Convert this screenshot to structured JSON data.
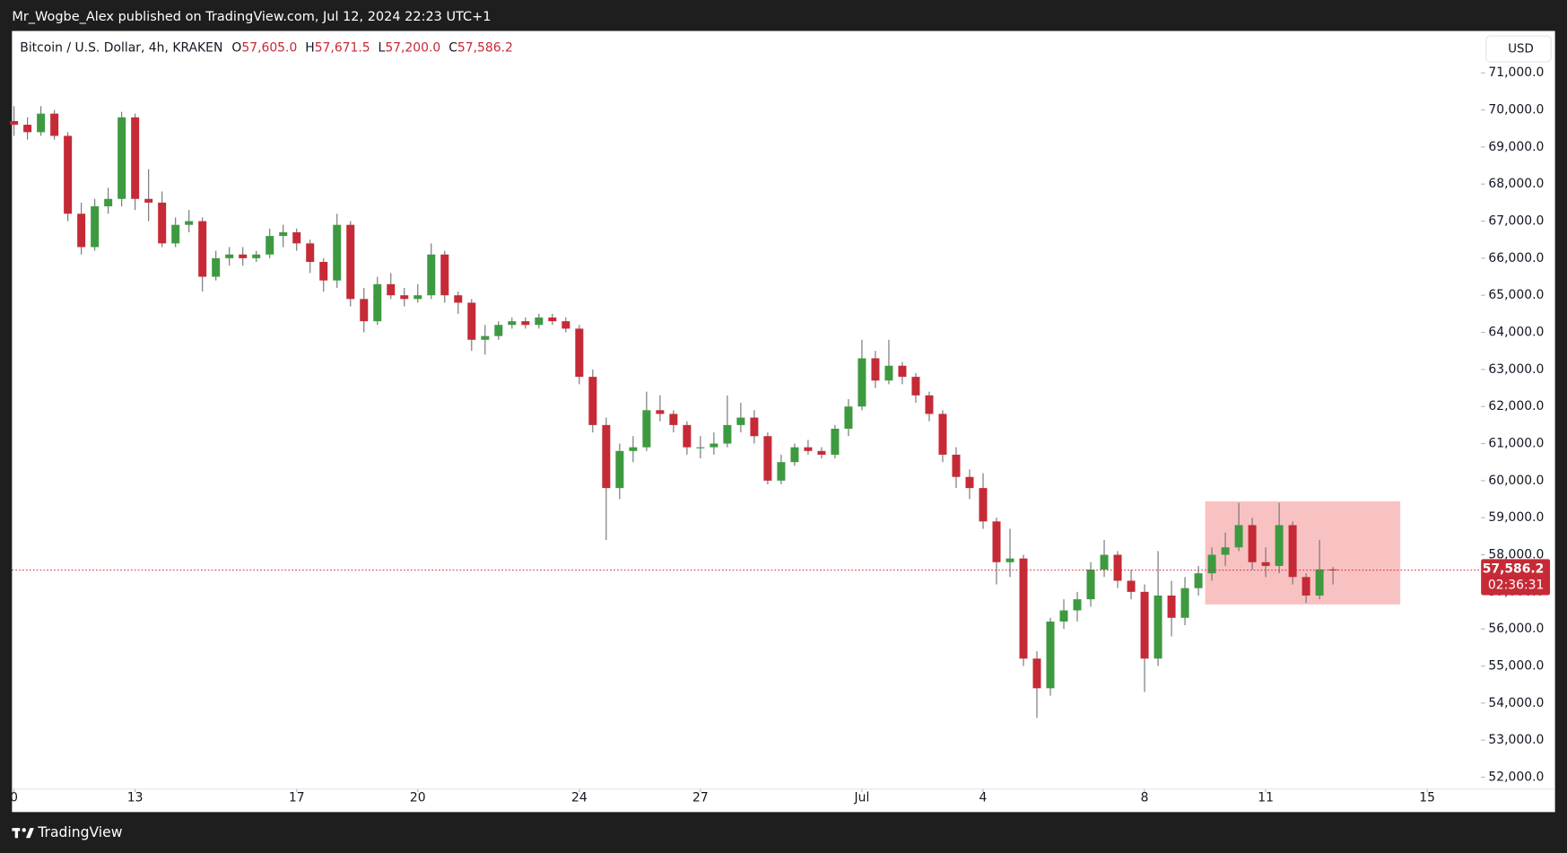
{
  "header": "Mr_Wogbe_Alex published on TradingView.com, Jul 12, 2024 22:23 UTC+1",
  "footer": "TradingView",
  "chart_data": {
    "type": "candlestick",
    "title": "Bitcoin / U.S. Dollar, 4h, KRAKEN",
    "ohlc": [
      {
        "key": "O",
        "value": 57605,
        "label": "57,605.0"
      },
      {
        "key": "H",
        "value": 57671.5,
        "label": "57,671.5"
      },
      {
        "key": "L",
        "value": 57200,
        "label": "57,200.0"
      },
      {
        "key": "C",
        "value": 57586.2,
        "label": "57,586.2"
      }
    ],
    "currency": "USD",
    "up_color": "#3d9a40",
    "down_color": "#c62a36",
    "wick_color": "#6f7074",
    "x": [
      0,
      1,
      2,
      3,
      4,
      5,
      6,
      7,
      8,
      9,
      10,
      11,
      12,
      13,
      14,
      15,
      16,
      17,
      18,
      19,
      20,
      21,
      22,
      23,
      24,
      25,
      26,
      27,
      28,
      29,
      30,
      31,
      32,
      33,
      34,
      35,
      36,
      37,
      38,
      39,
      40,
      41,
      42,
      43,
      44,
      45,
      46,
      47,
      48,
      49,
      50,
      51,
      52,
      53,
      54,
      55,
      56,
      57,
      58,
      59,
      60,
      61,
      62,
      63,
      64,
      65,
      66,
      67,
      68,
      69,
      70,
      71,
      72,
      73,
      74,
      75,
      76,
      77,
      78,
      79,
      80,
      81,
      82,
      83,
      84,
      85,
      86,
      87,
      88,
      89,
      90,
      91,
      92,
      93,
      94,
      95,
      96,
      97,
      98
    ],
    "candles": [
      [
        69700,
        70100,
        69300,
        69600
      ],
      [
        69600,
        69800,
        69200,
        69400
      ],
      [
        69400,
        70100,
        69300,
        69900
      ],
      [
        69900,
        70000,
        69200,
        69300
      ],
      [
        69300,
        69400,
        67000,
        67200
      ],
      [
        67200,
        67500,
        66100,
        66300
      ],
      [
        66300,
        67600,
        66200,
        67400
      ],
      [
        67400,
        67900,
        67200,
        67600
      ],
      [
        67600,
        69950,
        67400,
        69800
      ],
      [
        69800,
        69900,
        67300,
        67600
      ],
      [
        67600,
        68400,
        67000,
        67500
      ],
      [
        67500,
        67800,
        66300,
        66400
      ],
      [
        66400,
        67100,
        66300,
        66900
      ],
      [
        66900,
        67300,
        66700,
        67000
      ],
      [
        67000,
        67100,
        65100,
        65500
      ],
      [
        65500,
        66200,
        65400,
        66000
      ],
      [
        66000,
        66300,
        65800,
        66100
      ],
      [
        66100,
        66300,
        65800,
        66000
      ],
      [
        66000,
        66200,
        65900,
        66100
      ],
      [
        66100,
        66800,
        66000,
        66600
      ],
      [
        66600,
        66900,
        66300,
        66700
      ],
      [
        66700,
        66800,
        66200,
        66400
      ],
      [
        66400,
        66500,
        65600,
        65900
      ],
      [
        65900,
        66000,
        65100,
        65400
      ],
      [
        65400,
        67200,
        65200,
        66900
      ],
      [
        66900,
        67000,
        64700,
        64900
      ],
      [
        64900,
        65200,
        64000,
        64300
      ],
      [
        64300,
        65500,
        64200,
        65300
      ],
      [
        65300,
        65600,
        64900,
        65000
      ],
      [
        65000,
        65200,
        64700,
        64900
      ],
      [
        64900,
        65300,
        64800,
        65000
      ],
      [
        65000,
        66400,
        64900,
        66100
      ],
      [
        66100,
        66200,
        64800,
        65000
      ],
      [
        65000,
        65100,
        64500,
        64800
      ],
      [
        64800,
        64900,
        63500,
        63800
      ],
      [
        63800,
        64200,
        63400,
        63900
      ],
      [
        63900,
        64300,
        63800,
        64200
      ],
      [
        64200,
        64400,
        64100,
        64300
      ],
      [
        64300,
        64400,
        64100,
        64200
      ],
      [
        64200,
        64500,
        64100,
        64400
      ],
      [
        64400,
        64500,
        64200,
        64300
      ],
      [
        64300,
        64400,
        64000,
        64100
      ],
      [
        64100,
        64200,
        62600,
        62800
      ],
      [
        62800,
        63000,
        61300,
        61500
      ],
      [
        61500,
        61700,
        58400,
        59800
      ],
      [
        59800,
        61000,
        59500,
        60800
      ],
      [
        60800,
        61200,
        60500,
        60900
      ],
      [
        60900,
        62400,
        60800,
        61900
      ],
      [
        61900,
        62300,
        61600,
        61800
      ],
      [
        61800,
        61900,
        61300,
        61500
      ],
      [
        61500,
        61600,
        60700,
        60900
      ],
      [
        60900,
        61200,
        60600,
        60900
      ],
      [
        60900,
        61300,
        60700,
        61000
      ],
      [
        61000,
        62300,
        60900,
        61500
      ],
      [
        61500,
        62100,
        61300,
        61700
      ],
      [
        61700,
        61900,
        61000,
        61200
      ],
      [
        61200,
        61300,
        59900,
        60000
      ],
      [
        60000,
        60700,
        59900,
        60500
      ],
      [
        60500,
        61000,
        60400,
        60900
      ],
      [
        60900,
        61100,
        60700,
        60800
      ],
      [
        60800,
        60900,
        60600,
        60700
      ],
      [
        60700,
        61500,
        60600,
        61400
      ],
      [
        61400,
        62200,
        61200,
        62000
      ],
      [
        62000,
        63800,
        61900,
        63300
      ],
      [
        63300,
        63500,
        62500,
        62700
      ],
      [
        62700,
        63800,
        62600,
        63100
      ],
      [
        63100,
        63200,
        62600,
        62800
      ],
      [
        62800,
        62900,
        62100,
        62300
      ],
      [
        62300,
        62400,
        61600,
        61800
      ],
      [
        61800,
        61900,
        60500,
        60700
      ],
      [
        60700,
        60900,
        59800,
        60100
      ],
      [
        60100,
        60300,
        59500,
        59800
      ],
      [
        59800,
        60200,
        58700,
        58900
      ],
      [
        58900,
        59000,
        57200,
        57800
      ],
      [
        57800,
        58700,
        57400,
        57900
      ],
      [
        57900,
        58000,
        55000,
        55200
      ],
      [
        55200,
        55400,
        53600,
        54400
      ],
      [
        54400,
        56300,
        54200,
        56200
      ],
      [
        56200,
        56800,
        56000,
        56500
      ],
      [
        56500,
        57000,
        56200,
        56800
      ],
      [
        56800,
        57800,
        56600,
        57600
      ],
      [
        57600,
        58400,
        57400,
        58000
      ],
      [
        58000,
        58100,
        57100,
        57300
      ],
      [
        57300,
        57600,
        56800,
        57000
      ],
      [
        57000,
        57200,
        54300,
        55200
      ],
      [
        55200,
        58100,
        55000,
        56900
      ],
      [
        56900,
        57300,
        55800,
        56300
      ],
      [
        56300,
        57400,
        56100,
        57100
      ],
      [
        57100,
        57700,
        56900,
        57500
      ],
      [
        57500,
        58200,
        57300,
        58000
      ],
      [
        58000,
        58600,
        57700,
        58200
      ],
      [
        58200,
        59400,
        58100,
        58800
      ],
      [
        58800,
        59000,
        57600,
        57800
      ],
      [
        57800,
        58200,
        57400,
        57700
      ],
      [
        57700,
        59400,
        57500,
        58800
      ],
      [
        58800,
        58900,
        57200,
        57400
      ],
      [
        57400,
        57500,
        56700,
        56900
      ],
      [
        56900,
        58400,
        56800,
        57605
      ],
      [
        57605,
        57671.5,
        57200,
        57586.2
      ]
    ],
    "xlim": [
      -0.15,
      109.0
    ],
    "xticks": [
      {
        "value": 0,
        "label": "0"
      },
      {
        "value": 9,
        "label": "13"
      },
      {
        "value": 21,
        "label": "17"
      },
      {
        "value": 30,
        "label": "20"
      },
      {
        "value": 42,
        "label": "24"
      },
      {
        "value": 51,
        "label": "27"
      },
      {
        "value": 63,
        "label": "Jul"
      },
      {
        "value": 72,
        "label": "4"
      },
      {
        "value": 84,
        "label": "8"
      },
      {
        "value": 93,
        "label": "11"
      },
      {
        "value": 105,
        "label": "15"
      }
    ],
    "ylim": [
      51680,
      72130
    ],
    "yticks": [
      {
        "value": 52000,
        "label": "52,000.0"
      },
      {
        "value": 53000,
        "label": "53,000.0"
      },
      {
        "value": 54000,
        "label": "54,000.0"
      },
      {
        "value": 55000,
        "label": "55,000.0"
      },
      {
        "value": 56000,
        "label": "56,000.0"
      },
      {
        "value": 57000,
        "label": "57,000.0"
      },
      {
        "value": 58000,
        "label": "58,000.0"
      },
      {
        "value": 59000,
        "label": "59,000.0"
      },
      {
        "value": 60000,
        "label": "60,000.0"
      },
      {
        "value": 61000,
        "label": "61,000.0"
      },
      {
        "value": 62000,
        "label": "62,000.0"
      },
      {
        "value": 63000,
        "label": "63,000.0"
      },
      {
        "value": 64000,
        "label": "64,000.0"
      },
      {
        "value": 65000,
        "label": "65,000.0"
      },
      {
        "value": 66000,
        "label": "66,000.0"
      },
      {
        "value": 67000,
        "label": "67,000.0"
      },
      {
        "value": 68000,
        "label": "68,000.0"
      },
      {
        "value": 69000,
        "label": "69,000.0"
      },
      {
        "value": 70000,
        "label": "70,000.0"
      },
      {
        "value": 71000,
        "label": "71,000.0"
      }
    ],
    "grid": false,
    "last_price": {
      "value": 57586.2,
      "label": "57,586.2"
    },
    "countdown": "02:36:31",
    "last_price_color": "#c62a36",
    "highlight": {
      "x": [
        88.5,
        103.0
      ],
      "y": [
        56660,
        59440
      ],
      "color": "#f7a8a8"
    }
  }
}
